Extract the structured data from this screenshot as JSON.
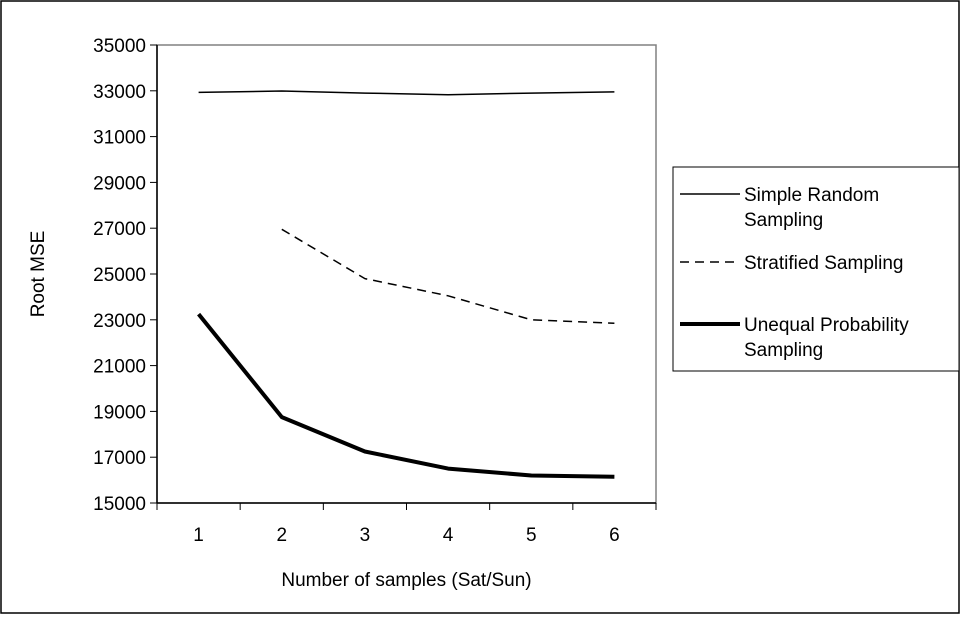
{
  "chart_data": {
    "type": "line",
    "title": "",
    "xlabel": "Number of samples (Sat/Sun)",
    "ylabel": "Root MSE",
    "categories": [
      "1",
      "2",
      "3",
      "4",
      "5",
      "6"
    ],
    "ylim": [
      15000,
      35000
    ],
    "yticks": [
      "15000",
      "17000",
      "19000",
      "21000",
      "23000",
      "25000",
      "27000",
      "29000",
      "31000",
      "33000",
      "35000"
    ],
    "grid": false,
    "legend_position": "right",
    "series": [
      {
        "name": "Simple Random Sampling",
        "name_lines": [
          "Simple Random",
          "Sampling"
        ],
        "style": "thin-solid",
        "color": "#000000",
        "values": [
          32930,
          32990,
          32900,
          32830,
          32900,
          32950
        ]
      },
      {
        "name": "Stratified Sampling",
        "name_lines": [
          "Stratified Sampling"
        ],
        "style": "dashed",
        "color": "#000000",
        "values": [
          null,
          26950,
          24800,
          24050,
          23000,
          22850
        ]
      },
      {
        "name": "Unequal Probability Sampling",
        "name_lines": [
          "Unequal Probability",
          "Sampling"
        ],
        "style": "thick-solid",
        "color": "#000000",
        "values": [
          23250,
          18750,
          17250,
          16500,
          16200,
          16150
        ]
      }
    ]
  }
}
